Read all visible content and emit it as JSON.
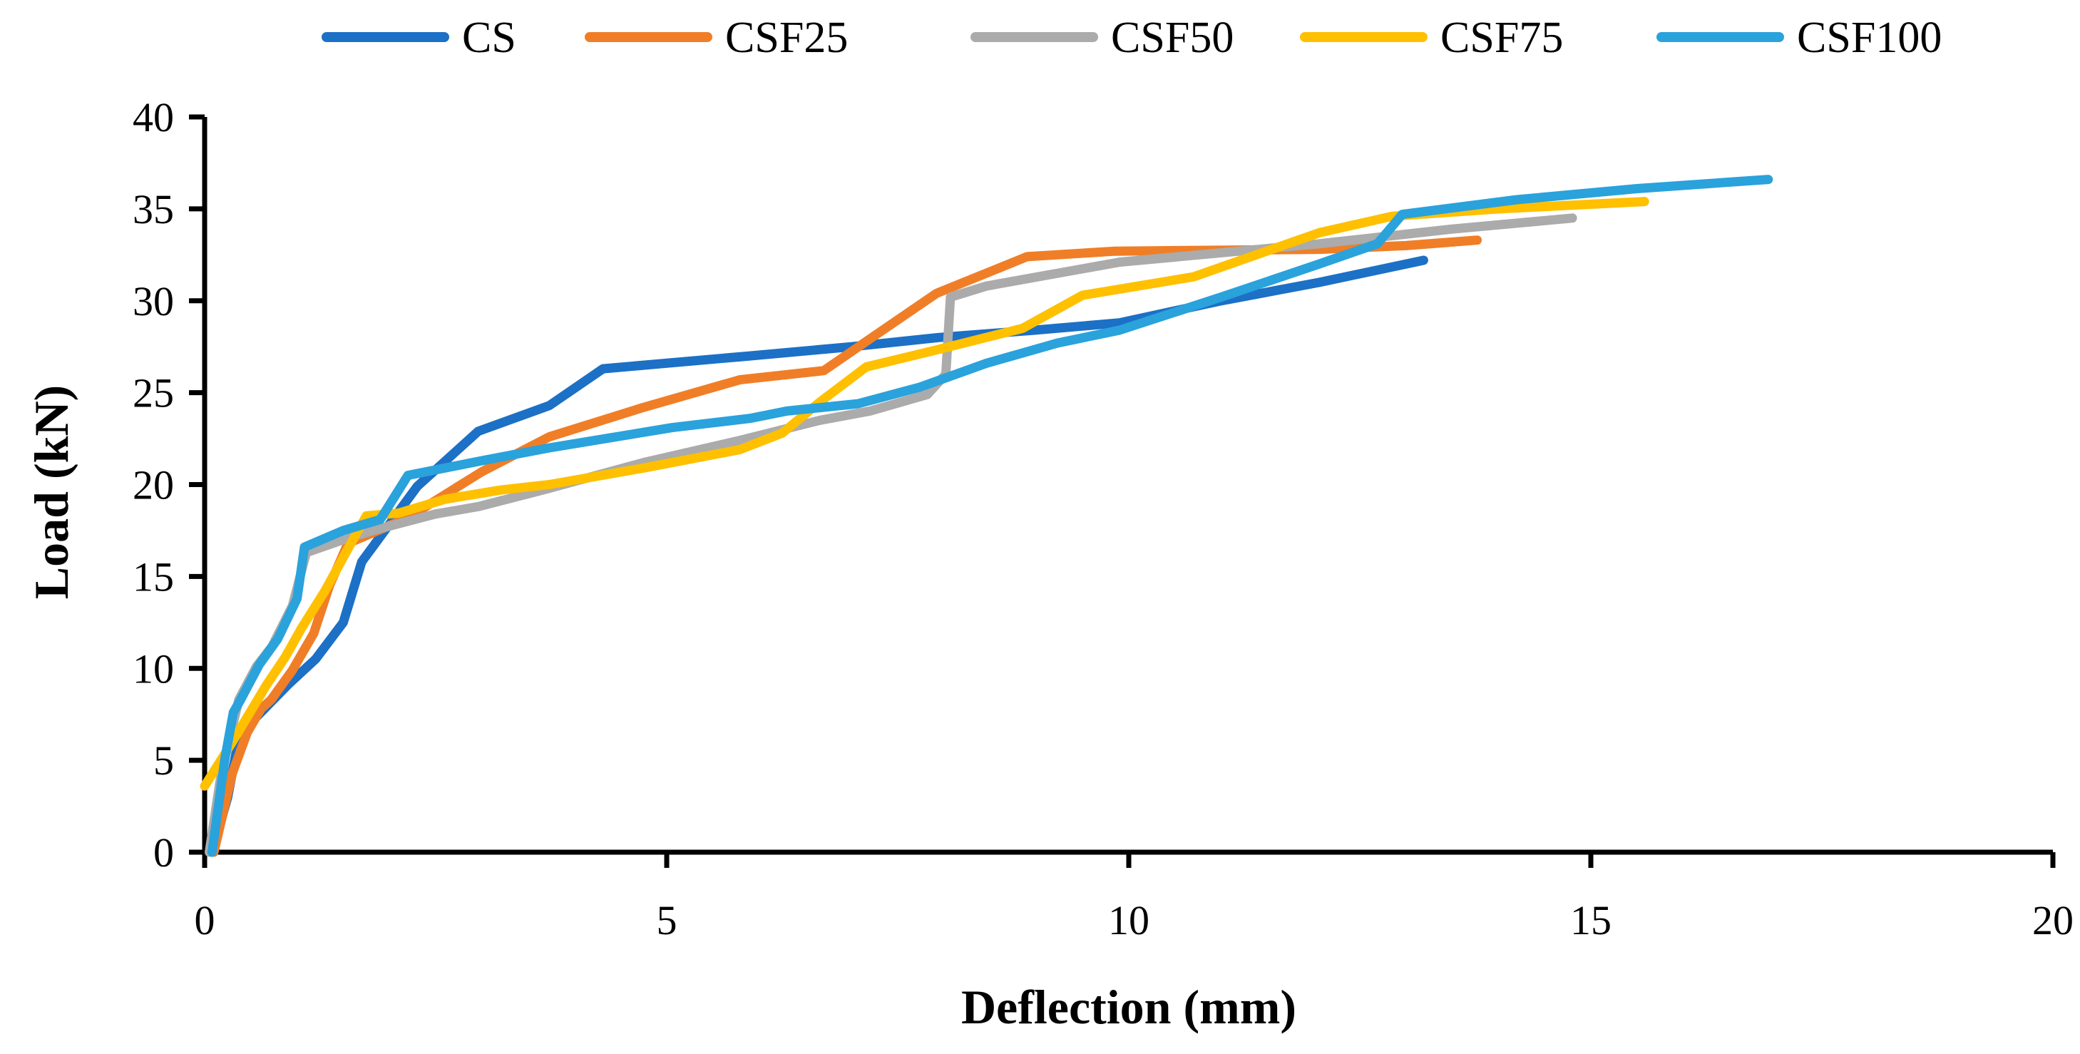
{
  "chart_data": {
    "type": "line",
    "title": "",
    "xlabel": "Deflection (mm)",
    "ylabel": "Load (kN)",
    "xlim": [
      0,
      20
    ],
    "ylim": [
      0,
      40
    ],
    "xticks": [
      0,
      5,
      10,
      15,
      20
    ],
    "yticks": [
      0,
      5,
      10,
      15,
      20,
      25,
      30,
      35,
      40
    ],
    "grid": false,
    "legend_position": "top-center",
    "axis_color": "#000000",
    "background_color": "#ffffff",
    "series": [
      {
        "name": "CS",
        "color": "#1C70C6",
        "points": [
          [
            0.08,
            0
          ],
          [
            0.25,
            3.0
          ],
          [
            0.35,
            5.7
          ],
          [
            0.55,
            7.3
          ],
          [
            0.9,
            9.1
          ],
          [
            1.2,
            10.5
          ],
          [
            1.5,
            12.5
          ],
          [
            1.7,
            15.8
          ],
          [
            2.3,
            19.9
          ],
          [
            2.96,
            22.9
          ],
          [
            3.73,
            24.3
          ],
          [
            4.31,
            26.3
          ],
          [
            5.9,
            27.0
          ],
          [
            7.0,
            27.5
          ],
          [
            7.94,
            28.0
          ],
          [
            8.98,
            28.4
          ],
          [
            9.9,
            28.8
          ],
          [
            11.0,
            30.0
          ],
          [
            12.06,
            31.0
          ],
          [
            13.19,
            32.2
          ]
        ]
      },
      {
        "name": "CSF25",
        "color": "#F07E27",
        "points": [
          [
            0.1,
            0
          ],
          [
            0.3,
            4.3
          ],
          [
            0.46,
            6.5
          ],
          [
            0.61,
            7.8
          ],
          [
            0.72,
            8.3
          ],
          [
            0.95,
            9.9
          ],
          [
            1.18,
            11.9
          ],
          [
            1.35,
            14.5
          ],
          [
            1.55,
            16.8
          ],
          [
            2.2,
            18.2
          ],
          [
            3.0,
            20.7
          ],
          [
            3.73,
            22.6
          ],
          [
            4.75,
            24.2
          ],
          [
            5.79,
            25.7
          ],
          [
            6.7,
            26.2
          ],
          [
            7.25,
            28.1
          ],
          [
            7.92,
            30.4
          ],
          [
            8.9,
            32.4
          ],
          [
            9.85,
            32.7
          ],
          [
            12.06,
            32.8
          ],
          [
            13.0,
            33.0
          ],
          [
            13.77,
            33.3
          ]
        ]
      },
      {
        "name": "CSF50",
        "color": "#ABABAB",
        "points": [
          [
            0.05,
            0
          ],
          [
            0.18,
            4.3
          ],
          [
            0.37,
            8.3
          ],
          [
            0.56,
            10.1
          ],
          [
            0.73,
            11.2
          ],
          [
            0.95,
            13.4
          ],
          [
            1.1,
            16.3
          ],
          [
            1.5,
            17.0
          ],
          [
            1.82,
            17.5
          ],
          [
            2.5,
            18.4
          ],
          [
            2.96,
            18.8
          ],
          [
            3.73,
            19.8
          ],
          [
            4.75,
            21.2
          ],
          [
            5.79,
            22.4
          ],
          [
            6.66,
            23.5
          ],
          [
            7.2,
            24.0
          ],
          [
            7.82,
            24.9
          ],
          [
            8.02,
            26.0
          ],
          [
            8.07,
            30.2
          ],
          [
            8.46,
            30.8
          ],
          [
            9.9,
            32.1
          ],
          [
            12.06,
            33.1
          ],
          [
            13.5,
            33.9
          ],
          [
            14.8,
            34.5
          ]
        ]
      },
      {
        "name": "CSF75",
        "color": "#FFC000",
        "points": [
          [
            0.0,
            3.6
          ],
          [
            0.3,
            6.0
          ],
          [
            0.67,
            9.1
          ],
          [
            0.87,
            10.6
          ],
          [
            1.05,
            12.2
          ],
          [
            1.3,
            14.2
          ],
          [
            1.55,
            16.5
          ],
          [
            1.75,
            18.3
          ],
          [
            2.1,
            18.45
          ],
          [
            2.6,
            19.2
          ],
          [
            3.2,
            19.7
          ],
          [
            3.73,
            20.0
          ],
          [
            4.75,
            20.9
          ],
          [
            5.79,
            21.9
          ],
          [
            6.25,
            22.8
          ],
          [
            6.66,
            24.5
          ],
          [
            7.16,
            26.4
          ],
          [
            7.9,
            27.3
          ],
          [
            8.85,
            28.5
          ],
          [
            9.5,
            30.3
          ],
          [
            10.7,
            31.3
          ],
          [
            12.06,
            33.7
          ],
          [
            12.85,
            34.6
          ],
          [
            14.0,
            35.0
          ],
          [
            15.58,
            35.4
          ]
        ]
      },
      {
        "name": "CSF100",
        "color": "#2AA2DC",
        "points": [
          [
            0.08,
            0
          ],
          [
            0.22,
            5.1
          ],
          [
            0.31,
            7.6
          ],
          [
            0.39,
            8.3
          ],
          [
            0.59,
            10.2
          ],
          [
            0.79,
            11.6
          ],
          [
            1.0,
            13.8
          ],
          [
            1.08,
            16.6
          ],
          [
            1.5,
            17.5
          ],
          [
            1.9,
            18.1
          ],
          [
            2.2,
            20.5
          ],
          [
            3.0,
            21.3
          ],
          [
            3.73,
            22.0
          ],
          [
            5.06,
            23.1
          ],
          [
            5.9,
            23.6
          ],
          [
            6.3,
            24.0
          ],
          [
            7.07,
            24.4
          ],
          [
            7.74,
            25.3
          ],
          [
            8.46,
            26.6
          ],
          [
            9.23,
            27.7
          ],
          [
            9.9,
            28.4
          ],
          [
            11.0,
            30.2
          ],
          [
            12.06,
            32.0
          ],
          [
            12.69,
            33.1
          ],
          [
            12.96,
            34.7
          ],
          [
            14.2,
            35.5
          ],
          [
            15.5,
            36.1
          ],
          [
            16.92,
            36.6
          ]
        ]
      }
    ]
  }
}
